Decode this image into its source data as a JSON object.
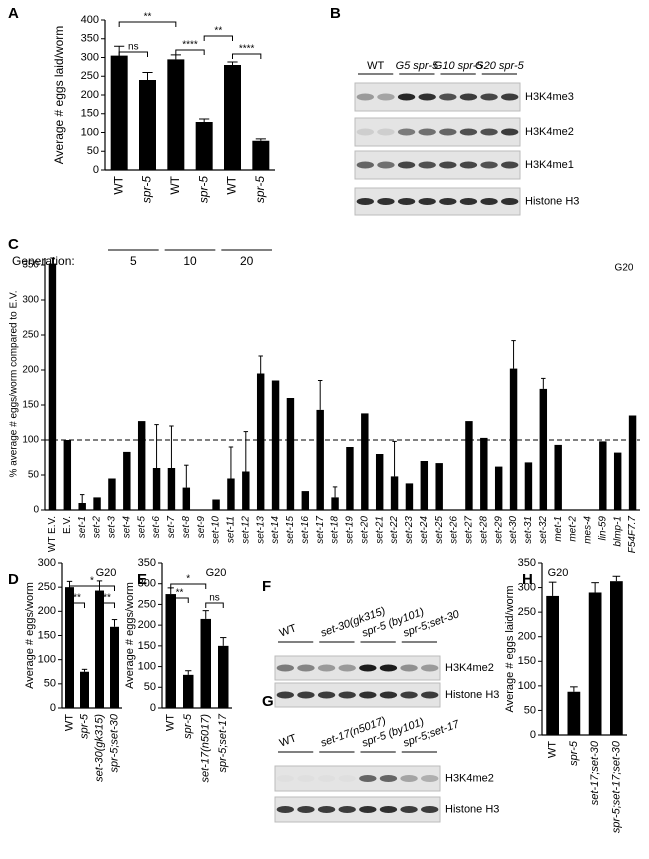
{
  "chart_data": [
    {
      "panel": "A",
      "type": "bar",
      "ylabel": "Average # eggs laid/worm",
      "categories": [
        "WT",
        "spr-5",
        "WT",
        "spr-5",
        "WT",
        "spr-5"
      ],
      "values": [
        305,
        240,
        295,
        128,
        280,
        78
      ],
      "errors": [
        25,
        20,
        12,
        8,
        8,
        5
      ],
      "ylim": [
        0,
        400
      ],
      "yticks": [
        0,
        50,
        100,
        150,
        200,
        250,
        300,
        350,
        400
      ],
      "color": "#000000",
      "significance": [
        "ns",
        "**",
        "****",
        "**",
        "****"
      ],
      "generation_label": "Generation:",
      "generations": [
        5,
        10,
        20
      ]
    },
    {
      "panel": "C",
      "type": "bar",
      "ylabel": "% average # eggs/worm compared to E.V.",
      "annotation": "G20",
      "reference_line": 100,
      "categories": [
        "WT E.V.",
        "E.V.",
        "set-1",
        "set-2",
        "set-3",
        "set-4",
        "set-5",
        "set-6",
        "set-7",
        "set-8",
        "set-9",
        "set-10",
        "set-11",
        "set-12",
        "set-13",
        "set-14",
        "set-15",
        "set-16",
        "set-17",
        "set-18",
        "set-19",
        "set-20",
        "set-21",
        "set-22",
        "set-23",
        "set-24",
        "set-25",
        "set-26",
        "set-27",
        "set-28",
        "set-29",
        "set-30",
        "set-31",
        "set-32",
        "met-1",
        "met-2",
        "mes-4",
        "lin-59",
        "blmp-1",
        "F54F7.7"
      ],
      "values": [
        352,
        100,
        10,
        18,
        45,
        83,
        127,
        60,
        60,
        32,
        0,
        15,
        45,
        55,
        195,
        185,
        160,
        27,
        143,
        18,
        90,
        138,
        80,
        48,
        38,
        70,
        67,
        0,
        127,
        103,
        62,
        202,
        68,
        173,
        93,
        0,
        0,
        98,
        82,
        135
      ],
      "errors": [
        8,
        0,
        12,
        0,
        0,
        0,
        0,
        62,
        60,
        32,
        0,
        0,
        45,
        57,
        25,
        0,
        0,
        0,
        42,
        15,
        0,
        0,
        0,
        50,
        0,
        0,
        0,
        0,
        0,
        0,
        0,
        40,
        0,
        15,
        0,
        0,
        0,
        0,
        0,
        0
      ],
      "ylim": [
        0,
        360
      ],
      "yticks": [
        0,
        50,
        100,
        150,
        200,
        250,
        300,
        350
      ],
      "color": "#000000"
    },
    {
      "panel": "D",
      "type": "bar",
      "ylabel": "Average # eggs/worm",
      "annotation": "G20",
      "categories": [
        "WT",
        "spr-5",
        "set-30(gk315)",
        "spr-5;set-30"
      ],
      "values": [
        250,
        75,
        243,
        168
      ],
      "errors": [
        12,
        5,
        20,
        15
      ],
      "ylim": [
        0,
        300
      ],
      "yticks": [
        0,
        50,
        100,
        150,
        200,
        250,
        300
      ],
      "color": "#000000",
      "significance": [
        "**",
        "*",
        "**"
      ]
    },
    {
      "panel": "E",
      "type": "bar",
      "ylabel": "Average # eggs/worm",
      "annotation": "G20",
      "categories": [
        "WT",
        "spr-5",
        "set-17(n5017)",
        "spr-5;set-17"
      ],
      "values": [
        275,
        80,
        215,
        150
      ],
      "errors": [
        15,
        10,
        20,
        20
      ],
      "ylim": [
        0,
        350
      ],
      "yticks": [
        0,
        50,
        100,
        150,
        200,
        250,
        300,
        350
      ],
      "color": "#000000",
      "significance": [
        "**",
        "*",
        "ns"
      ]
    },
    {
      "panel": "H",
      "type": "bar",
      "ylabel": "Average # eggs laid/worm",
      "annotation": "G20",
      "categories": [
        "WT",
        "spr-5",
        "set-17;set-30",
        "spr-5;set-17;set-30"
      ],
      "values": [
        283,
        88,
        290,
        313
      ],
      "errors": [
        28,
        10,
        20,
        10
      ],
      "ylim": [
        0,
        350
      ],
      "yticks": [
        0,
        50,
        100,
        150,
        200,
        250,
        300,
        350
      ],
      "color": "#000000"
    }
  ],
  "blots": [
    {
      "panel": "B",
      "lanes": [
        "WT",
        "G5 spr-5",
        "G10 spr-5",
        "G20 spr-5"
      ],
      "rows": [
        "H3K4me3",
        "H3K4me2",
        "H3K4me1",
        "Histone H3"
      ]
    },
    {
      "panel": "F",
      "lanes": [
        "WT",
        "set-30(gk315)",
        "spr-5 (by101)",
        "spr-5;set-30"
      ],
      "rows": [
        "H3K4me2",
        "Histone H3"
      ]
    },
    {
      "panel": "G",
      "lanes": [
        "WT",
        "set-17(n5017)",
        "spr-5 (by101)",
        "spr-5;set-17"
      ],
      "rows": [
        "H3K4me2",
        "Histone H3"
      ]
    }
  ]
}
